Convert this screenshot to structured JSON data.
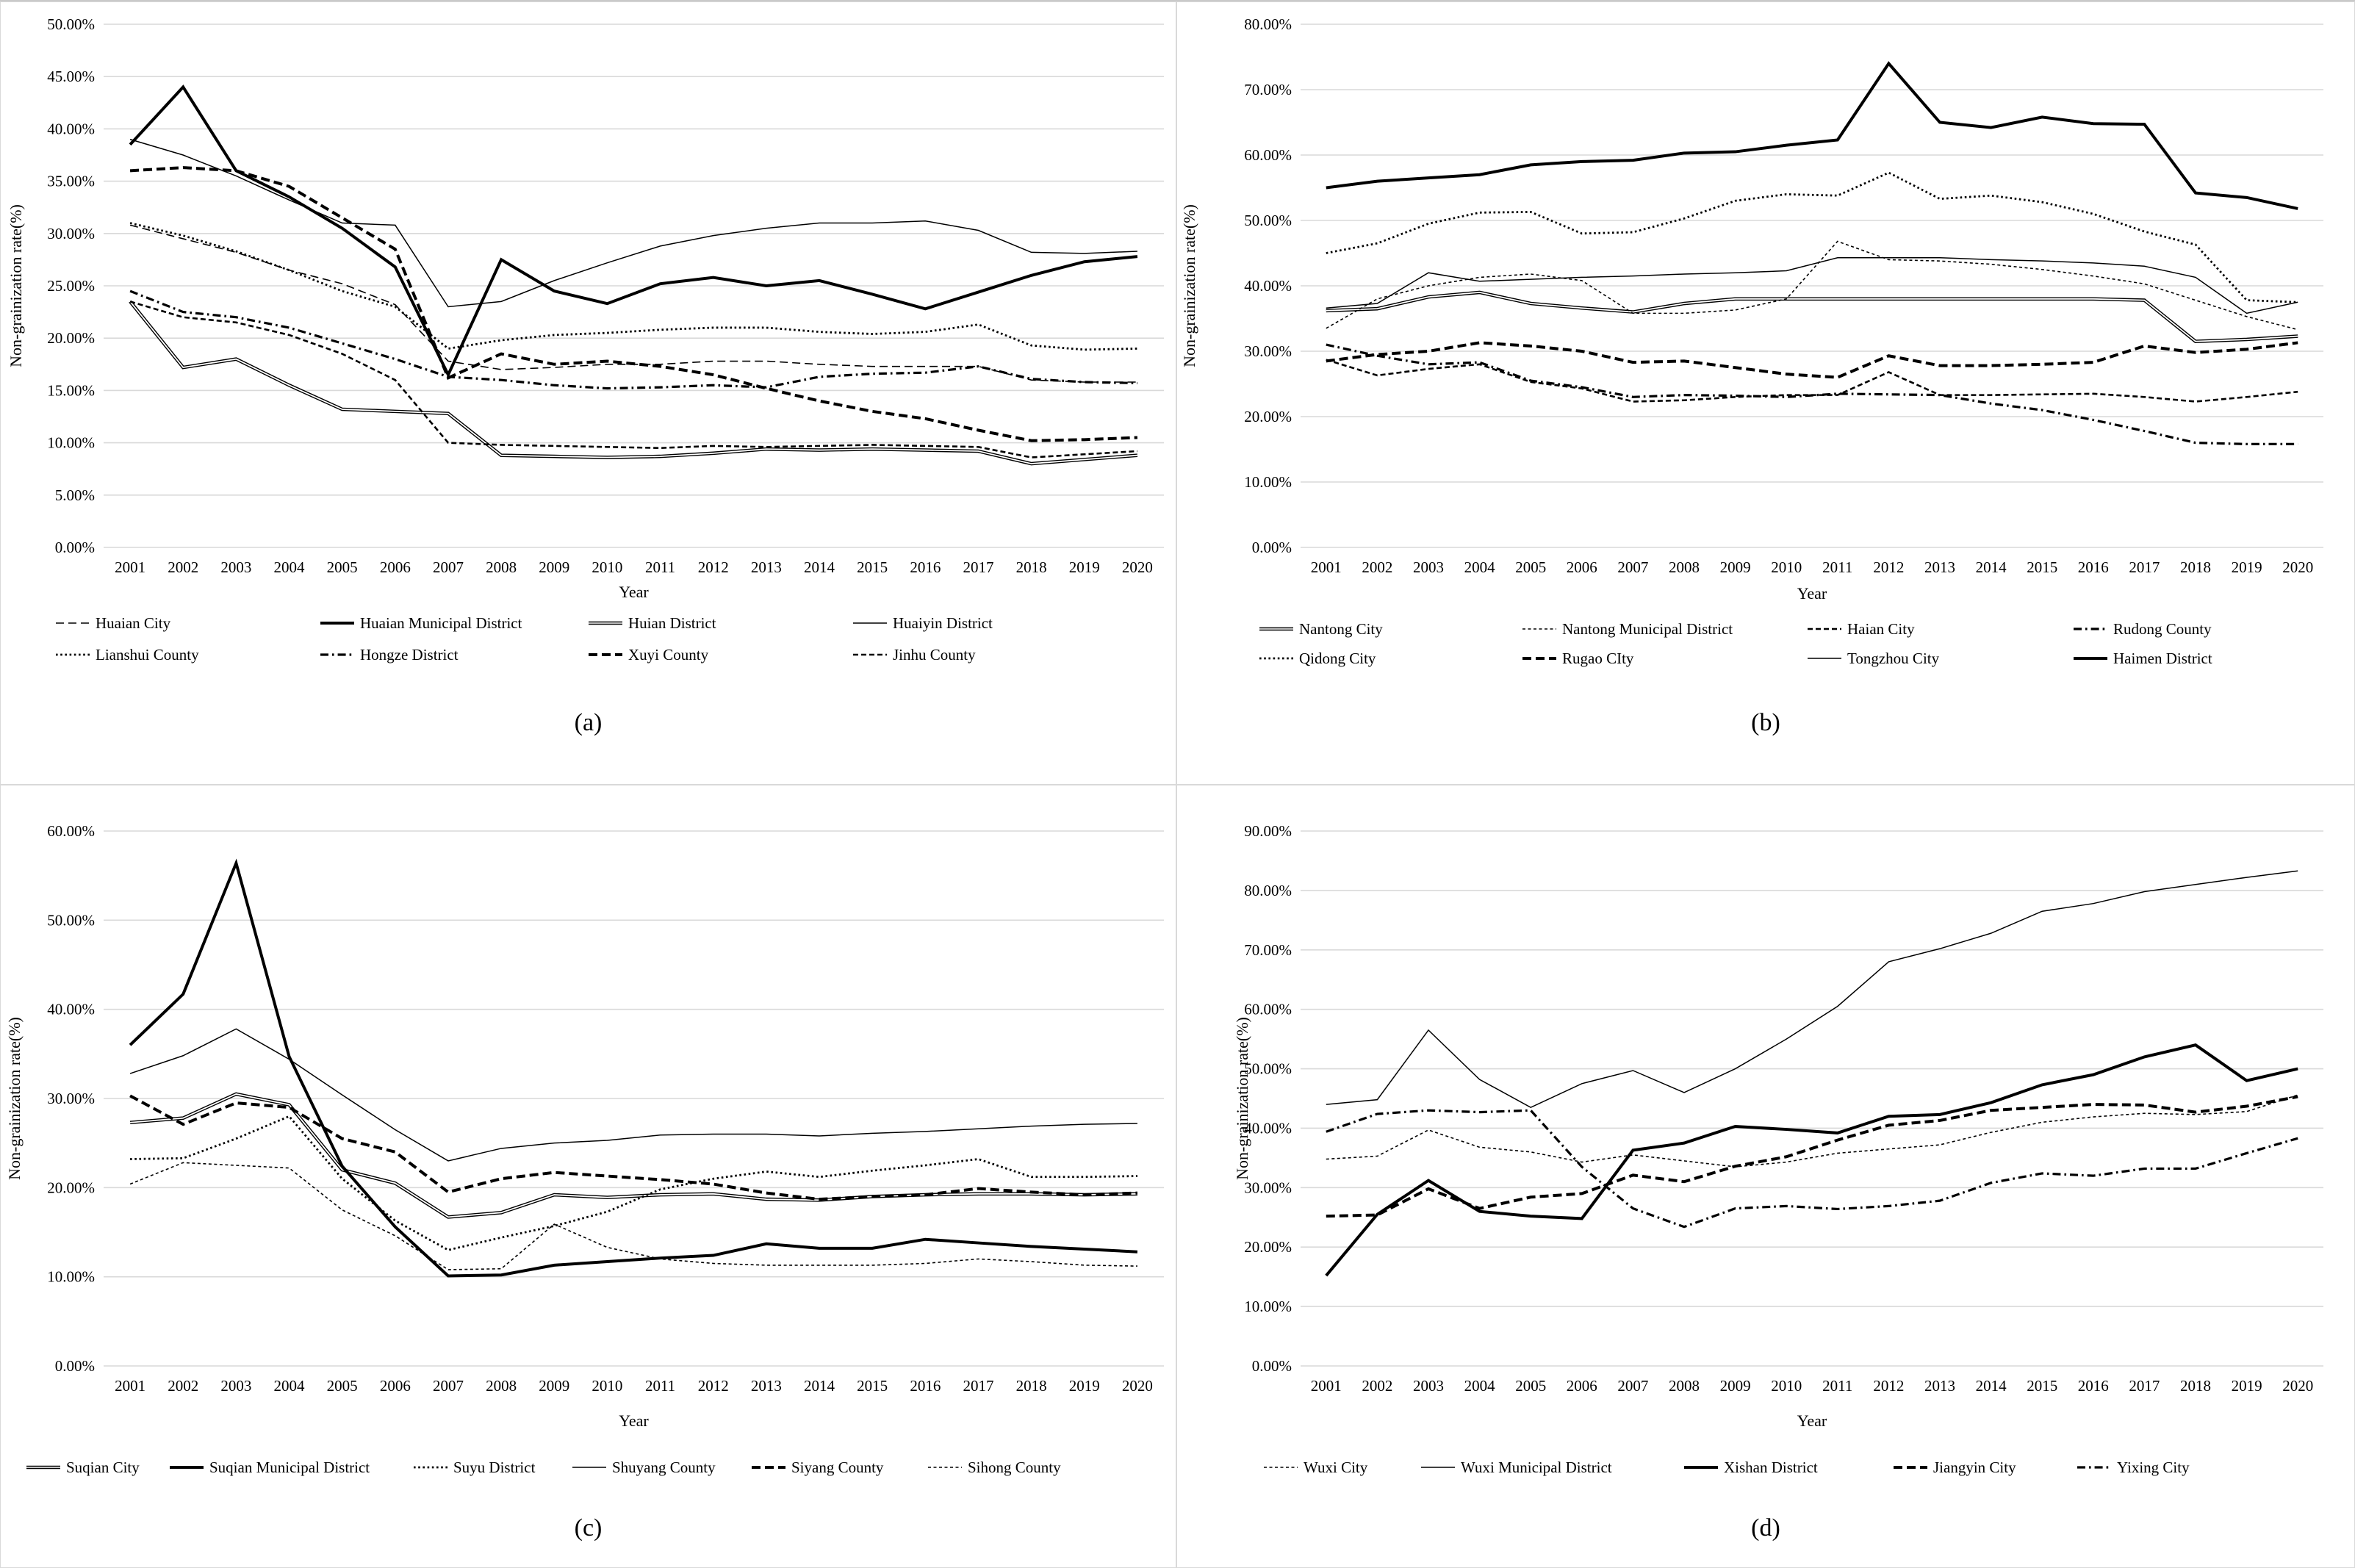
{
  "figure": {
    "y_axis_label": "Non-grainization rate(%)",
    "x_axis_label": "Year"
  },
  "chart_data": [
    {
      "type": "line",
      "caption": "(a)",
      "xlabel": "Year",
      "ylabel": "Non-grainization rate(%)",
      "ylim": [
        0,
        50
      ],
      "ytick_step": 5,
      "yticks": [
        "0.00%",
        "5.00%",
        "10.00%",
        "15.00%",
        "20.00%",
        "25.00%",
        "30.00%",
        "35.00%",
        "40.00%",
        "45.00%",
        "50.00%"
      ],
      "grid": true,
      "legend_position": "bottom",
      "x": [
        2001,
        2002,
        2003,
        2004,
        2005,
        2006,
        2007,
        2008,
        2009,
        2010,
        2011,
        2012,
        2013,
        2014,
        2015,
        2016,
        2017,
        2018,
        2019,
        2020
      ],
      "series": [
        {
          "name": "Huaian City",
          "style": "thindash",
          "values": [
            30.8,
            29.5,
            28.2,
            26.5,
            25.2,
            23.2,
            17.8,
            17.0,
            17.2,
            17.5,
            17.5,
            17.8,
            17.8,
            17.5,
            17.3,
            17.3,
            17.3,
            16.0,
            15.8,
            15.8
          ]
        },
        {
          "name": "Huaian Municipal District",
          "style": "thicksolid",
          "values": [
            38.5,
            44.0,
            36.0,
            33.5,
            30.5,
            26.8,
            16.5,
            27.5,
            24.5,
            23.3,
            25.2,
            25.8,
            25.0,
            25.5,
            24.2,
            22.8,
            24.4,
            26.0,
            27.3,
            27.8
          ]
        },
        {
          "name": "Huian District",
          "style": "double",
          "values": [
            23.5,
            17.2,
            18.0,
            15.5,
            13.2,
            13.0,
            12.8,
            8.8,
            8.7,
            8.6,
            8.7,
            9.0,
            9.4,
            9.3,
            9.4,
            9.3,
            9.2,
            8.0,
            8.4,
            8.8
          ]
        },
        {
          "name": "Huaiyin District",
          "style": "thinsolid",
          "values": [
            39.0,
            37.5,
            35.5,
            33.2,
            31.0,
            30.8,
            23.0,
            23.5,
            25.5,
            27.2,
            28.8,
            29.8,
            30.5,
            31.0,
            31.0,
            31.2,
            30.3,
            28.2,
            28.1,
            28.3
          ]
        },
        {
          "name": "Lianshui County",
          "style": "dot",
          "values": [
            31.0,
            29.8,
            28.3,
            26.5,
            24.5,
            23.0,
            19.0,
            19.8,
            20.3,
            20.5,
            20.8,
            21.0,
            21.0,
            20.6,
            20.4,
            20.6,
            21.3,
            19.3,
            18.9,
            19.0
          ]
        },
        {
          "name": "Hongze District",
          "style": "dashdot",
          "values": [
            24.5,
            22.5,
            22.0,
            21.0,
            19.5,
            18.0,
            16.3,
            16.0,
            15.5,
            15.2,
            15.3,
            15.5,
            15.3,
            16.3,
            16.6,
            16.7,
            17.3,
            16.1,
            15.8,
            15.7
          ]
        },
        {
          "name": "Xuyi County",
          "style": "thickdash",
          "values": [
            36.0,
            36.3,
            36.0,
            34.5,
            31.5,
            28.5,
            16.2,
            18.5,
            17.5,
            17.8,
            17.3,
            16.5,
            15.2,
            14.0,
            13.0,
            12.3,
            11.2,
            10.2,
            10.3,
            10.5
          ]
        },
        {
          "name": "Jinhu County",
          "style": "meddash",
          "values": [
            23.5,
            22.0,
            21.5,
            20.3,
            18.5,
            16.0,
            10.0,
            9.8,
            9.7,
            9.6,
            9.5,
            9.7,
            9.6,
            9.7,
            9.8,
            9.7,
            9.6,
            8.6,
            8.9,
            9.2
          ]
        }
      ]
    },
    {
      "type": "line",
      "caption": "(b)",
      "xlabel": "Year",
      "ylabel": "Non-grainization rate(%)",
      "ylim": [
        0,
        80
      ],
      "ytick_step": 10,
      "yticks": [
        "0.00%",
        "10.00%",
        "20.00%",
        "30.00%",
        "40.00%",
        "50.00%",
        "60.00%",
        "70.00%",
        "80.00%"
      ],
      "grid": true,
      "legend_position": "bottom",
      "x": [
        2001,
        2002,
        2003,
        2004,
        2005,
        2006,
        2007,
        2008,
        2009,
        2010,
        2011,
        2012,
        2013,
        2014,
        2015,
        2016,
        2017,
        2018,
        2019,
        2020
      ],
      "series": [
        {
          "name": "Nantong City",
          "style": "double",
          "values": [
            36.2,
            36.5,
            38.3,
            39.0,
            37.3,
            36.6,
            36.0,
            37.3,
            38.0,
            38.0,
            38.0,
            38.0,
            38.0,
            38.0,
            38.0,
            38.0,
            37.8,
            31.5,
            31.8,
            32.3
          ]
        },
        {
          "name": "Nantong Municipal District",
          "style": "finedash",
          "values": [
            33.5,
            38.0,
            40.0,
            41.3,
            41.8,
            40.8,
            35.8,
            35.8,
            36.3,
            38.0,
            46.8,
            44.0,
            43.8,
            43.3,
            42.5,
            41.5,
            40.3,
            37.8,
            35.3,
            33.3
          ]
        },
        {
          "name": "Haian City",
          "style": "meddash",
          "values": [
            28.7,
            26.3,
            27.3,
            28.0,
            25.3,
            24.3,
            22.3,
            22.5,
            23.0,
            23.3,
            23.3,
            26.8,
            23.3,
            23.3,
            23.4,
            23.5,
            23.0,
            22.3,
            23.0,
            23.8
          ]
        },
        {
          "name": "Rudong County",
          "style": "dashdot",
          "values": [
            31.0,
            29.3,
            28.0,
            28.3,
            25.5,
            24.5,
            23.0,
            23.3,
            23.2,
            23.0,
            23.5,
            23.4,
            23.3,
            22.0,
            21.0,
            19.5,
            17.8,
            16.0,
            15.8,
            15.8
          ]
        },
        {
          "name": "Qidong City",
          "style": "dot",
          "values": [
            45.0,
            46.5,
            49.5,
            51.2,
            51.3,
            48.0,
            48.2,
            50.3,
            53.0,
            54.0,
            53.8,
            57.3,
            53.3,
            53.8,
            52.8,
            51.0,
            48.3,
            46.3,
            37.8,
            37.5
          ]
        },
        {
          "name": "Rugao CIty",
          "style": "thickdash",
          "values": [
            28.5,
            29.5,
            30.0,
            31.3,
            30.8,
            30.0,
            28.3,
            28.5,
            27.5,
            26.5,
            26.0,
            29.3,
            27.8,
            27.8,
            28.0,
            28.3,
            30.8,
            29.8,
            30.3,
            31.3
          ]
        },
        {
          "name": "Tongzhou City",
          "style": "thinsolid",
          "values": [
            36.6,
            37.3,
            42.0,
            40.7,
            41.0,
            41.3,
            41.5,
            41.8,
            42.0,
            42.3,
            44.3,
            44.3,
            44.3,
            44.0,
            43.8,
            43.5,
            43.0,
            41.3,
            35.8,
            37.5
          ]
        },
        {
          "name": "Haimen District",
          "style": "thicksolid",
          "values": [
            55.0,
            56.0,
            56.5,
            57.0,
            58.5,
            59.0,
            59.2,
            60.3,
            60.5,
            61.5,
            62.3,
            74.0,
            65.0,
            64.2,
            65.8,
            64.8,
            64.7,
            54.2,
            53.5,
            51.8
          ]
        }
      ]
    },
    {
      "type": "line",
      "caption": "(c)",
      "xlabel": "Year",
      "ylabel": "Non-grainization rate(%)",
      "ylim": [
        0,
        60
      ],
      "ytick_step": 10,
      "yticks": [
        "0.00%",
        "10.00%",
        "20.00%",
        "30.00%",
        "40.00%",
        "50.00%",
        "60.00%"
      ],
      "grid": true,
      "legend_position": "bottom",
      "x": [
        2001,
        2002,
        2003,
        2004,
        2005,
        2006,
        2007,
        2008,
        2009,
        2010,
        2011,
        2012,
        2013,
        2014,
        2015,
        2016,
        2017,
        2018,
        2019,
        2020
      ],
      "series": [
        {
          "name": "Suqian City",
          "style": "double",
          "values": [
            27.3,
            27.8,
            30.5,
            29.3,
            22.0,
            20.5,
            16.7,
            17.2,
            19.2,
            18.9,
            19.2,
            19.3,
            18.7,
            18.6,
            19.0,
            19.2,
            19.3,
            19.3,
            19.2,
            19.3
          ]
        },
        {
          "name": "Suqian Municipal District",
          "style": "thicksolid",
          "values": [
            36.0,
            41.7,
            56.4,
            34.7,
            22.4,
            15.6,
            10.1,
            10.2,
            11.3,
            11.7,
            12.1,
            12.4,
            13.7,
            13.2,
            13.2,
            14.2,
            13.8,
            13.4,
            13.1,
            12.8
          ]
        },
        {
          "name": "Suyu District",
          "style": "dot",
          "values": [
            23.2,
            23.3,
            25.5,
            28.0,
            21.0,
            16.3,
            13.0,
            14.4,
            15.7,
            17.3,
            19.8,
            21.0,
            21.8,
            21.2,
            21.9,
            22.5,
            23.2,
            21.2,
            21.2,
            21.3
          ]
        },
        {
          "name": "Shuyang County",
          "style": "thinsolid",
          "values": [
            32.8,
            34.8,
            37.8,
            34.4,
            30.4,
            26.5,
            23.0,
            24.4,
            25.0,
            25.3,
            25.9,
            26.0,
            26.0,
            25.8,
            26.1,
            26.3,
            26.6,
            26.9,
            27.1,
            27.2
          ]
        },
        {
          "name": "Siyang County",
          "style": "thickdash",
          "values": [
            30.3,
            27.1,
            29.5,
            29.0,
            25.5,
            24.0,
            19.5,
            21.0,
            21.7,
            21.3,
            20.9,
            20.4,
            19.4,
            18.7,
            19.0,
            19.2,
            19.9,
            19.5,
            19.2,
            19.4
          ]
        },
        {
          "name": "Sihong County",
          "style": "finedash",
          "values": [
            20.4,
            22.8,
            22.5,
            22.2,
            17.5,
            14.6,
            10.8,
            10.9,
            15.9,
            13.3,
            12.0,
            11.5,
            11.3,
            11.3,
            11.3,
            11.5,
            12.0,
            11.7,
            11.3,
            11.2
          ]
        }
      ]
    },
    {
      "type": "line",
      "caption": "(d)",
      "xlabel": "Year",
      "ylabel": "Non-grainization rate(%)",
      "ylim": [
        0,
        90
      ],
      "ytick_step": 10,
      "yticks": [
        "0.00%",
        "10.00%",
        "20.00%",
        "30.00%",
        "40.00%",
        "50.00%",
        "60.00%",
        "70.00%",
        "80.00%",
        "90.00%"
      ],
      "grid": true,
      "legend_position": "bottom",
      "x": [
        2001,
        2002,
        2003,
        2004,
        2005,
        2006,
        2007,
        2008,
        2009,
        2010,
        2011,
        2012,
        2013,
        2014,
        2015,
        2016,
        2017,
        2018,
        2019,
        2020
      ],
      "series": [
        {
          "name": "Wuxi City",
          "style": "finedash",
          "values": [
            34.8,
            35.3,
            39.7,
            36.8,
            36.0,
            34.3,
            35.5,
            34.5,
            33.5,
            34.3,
            35.8,
            36.5,
            37.2,
            39.3,
            41.0,
            41.9,
            42.5,
            42.3,
            42.8,
            45.6
          ]
        },
        {
          "name": "Wuxi Municipal District",
          "style": "thinsolid",
          "values": [
            44.0,
            44.8,
            56.5,
            48.2,
            43.5,
            47.5,
            49.7,
            46.0,
            50.0,
            55.0,
            60.5,
            68.0,
            70.2,
            72.8,
            76.5,
            77.8,
            79.8,
            81.0,
            82.2,
            83.3
          ]
        },
        {
          "name": "Xishan District",
          "style": "thicksolid",
          "values": [
            15.2,
            25.5,
            31.2,
            26.0,
            25.2,
            24.8,
            36.3,
            37.5,
            40.3,
            39.8,
            39.2,
            42.0,
            42.3,
            44.3,
            47.3,
            49.0,
            52.0,
            54.0,
            48.0,
            50.0
          ]
        },
        {
          "name": "Jiangyin City",
          "style": "thickdash",
          "values": [
            25.2,
            25.4,
            29.8,
            26.5,
            28.4,
            29.0,
            32.1,
            31.0,
            33.6,
            35.2,
            38.0,
            40.5,
            41.3,
            43.0,
            43.5,
            44.0,
            43.9,
            42.7,
            43.7,
            45.3
          ]
        },
        {
          "name": "Yixing City",
          "style": "dashdot",
          "values": [
            39.4,
            42.4,
            43.0,
            42.7,
            43.0,
            33.5,
            26.5,
            23.4,
            26.5,
            26.9,
            26.4,
            26.9,
            27.8,
            30.8,
            32.4,
            32.0,
            33.2,
            33.2,
            35.8,
            38.3
          ]
        }
      ]
    }
  ]
}
